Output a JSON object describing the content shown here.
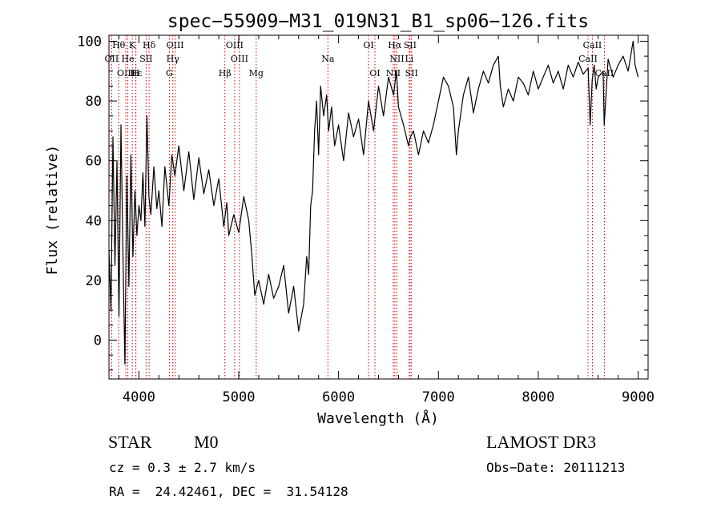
{
  "chart_data": {
    "type": "line",
    "title": "spec−55909−M31_019N31_B1_sp06−126.fits",
    "xlabel": "Wavelength (Å)",
    "ylabel": "Flux (relative)",
    "xlim": [
      3700,
      9100
    ],
    "ylim": [
      -13,
      102
    ],
    "xticks": [
      4000,
      5000,
      6000,
      7000,
      8000,
      9000
    ],
    "yticks": [
      0,
      20,
      40,
      60,
      80,
      100
    ],
    "grid": false,
    "series": [
      {
        "name": "flux",
        "x": [
          3700,
          3720,
          3740,
          3760,
          3780,
          3800,
          3820,
          3840,
          3860,
          3880,
          3900,
          3920,
          3940,
          3960,
          3980,
          4000,
          4020,
          4040,
          4060,
          4080,
          4100,
          4120,
          4150,
          4180,
          4200,
          4230,
          4260,
          4300,
          4330,
          4360,
          4400,
          4450,
          4500,
          4550,
          4600,
          4650,
          4700,
          4750,
          4800,
          4850,
          4880,
          4900,
          4950,
          5000,
          5050,
          5100,
          5130,
          5160,
          5200,
          5250,
          5300,
          5350,
          5400,
          5450,
          5500,
          5550,
          5600,
          5650,
          5680,
          5700,
          5720,
          5740,
          5760,
          5780,
          5800,
          5820,
          5850,
          5880,
          5900,
          5930,
          5960,
          6000,
          6050,
          6100,
          6150,
          6200,
          6250,
          6300,
          6350,
          6400,
          6450,
          6500,
          6550,
          6580,
          6600,
          6650,
          6700,
          6720,
          6750,
          6800,
          6850,
          6900,
          6950,
          7000,
          7050,
          7100,
          7150,
          7180,
          7200,
          7250,
          7300,
          7350,
          7400,
          7450,
          7500,
          7550,
          7600,
          7620,
          7650,
          7700,
          7750,
          7800,
          7850,
          7900,
          7950,
          8000,
          8050,
          8100,
          8150,
          8200,
          8250,
          8300,
          8350,
          8400,
          8450,
          8500,
          8520,
          8540,
          8560,
          8580,
          8600,
          8650,
          8660,
          8700,
          8750,
          8800,
          8850,
          8900,
          8950,
          8970,
          9000
        ],
        "values": [
          30,
          10,
          68,
          25,
          60,
          8,
          72,
          30,
          -8,
          55,
          18,
          62,
          28,
          50,
          35,
          45,
          40,
          56,
          38,
          75,
          48,
          42,
          58,
          44,
          50,
          38,
          58,
          45,
          62,
          55,
          65,
          50,
          63,
          47,
          61,
          49,
          57,
          45,
          54,
          38,
          46,
          35,
          42,
          36,
          48,
          40,
          29,
          15,
          20,
          12,
          22,
          14,
          18,
          25,
          9,
          18,
          3,
          12,
          28,
          22,
          45,
          50,
          70,
          80,
          62,
          85,
          75,
          82,
          70,
          78,
          65,
          72,
          60,
          76,
          68,
          74,
          62,
          80,
          70,
          85,
          75,
          88,
          82,
          90,
          78,
          72,
          65,
          68,
          70,
          62,
          70,
          66,
          72,
          80,
          88,
          85,
          78,
          62,
          70,
          82,
          88,
          76,
          84,
          90,
          86,
          92,
          95,
          85,
          78,
          84,
          80,
          88,
          86,
          82,
          90,
          84,
          88,
          92,
          86,
          90,
          84,
          92,
          88,
          93,
          89,
          91,
          72,
          87,
          92,
          84,
          88,
          90,
          72,
          94,
          88,
          92,
          95,
          90,
          100,
          92,
          88
        ]
      }
    ],
    "lines": [
      {
        "label": "Hθ",
        "x": 3798,
        "row": 0
      },
      {
        "label": "K",
        "x": 3934,
        "row": 0
      },
      {
        "label": "Hδ",
        "x": 4102,
        "row": 0
      },
      {
        "label": "OIII",
        "x": 4363,
        "row": 0
      },
      {
        "label": "OIII",
        "x": 4959,
        "row": 0
      },
      {
        "label": "OI",
        "x": 6300,
        "row": 0
      },
      {
        "label": "Hα",
        "x": 6563,
        "row": 0
      },
      {
        "label": "SII",
        "x": 6716,
        "row": 0
      },
      {
        "label": "CaII",
        "x": 8542,
        "row": 0
      },
      {
        "label": "OII",
        "x": 3727,
        "row": 1
      },
      {
        "label": "He",
        "x": 3889,
        "row": 1
      },
      {
        "label": "SII",
        "x": 4072,
        "row": 1
      },
      {
        "label": "Hγ",
        "x": 4340,
        "row": 1
      },
      {
        "label": "OIII",
        "x": 5007,
        "row": 1
      },
      {
        "label": "Na",
        "x": 5893,
        "row": 1
      },
      {
        "label": "NII",
        "x": 6584,
        "row": 1
      },
      {
        "label": "Li",
        "x": 6708,
        "row": 1
      },
      {
        "label": "CaII",
        "x": 8498,
        "row": 1
      },
      {
        "label": "OIII",
        "x": 3869,
        "row": 2
      },
      {
        "label": "Hε",
        "x": 3970,
        "row": 2
      },
      {
        "label": "H",
        "x": 3968,
        "row": 2
      },
      {
        "label": "G",
        "x": 4305,
        "row": 2
      },
      {
        "label": "Hβ",
        "x": 4861,
        "row": 2
      },
      {
        "label": "Mg",
        "x": 5175,
        "row": 2
      },
      {
        "label": "OI",
        "x": 6364,
        "row": 2
      },
      {
        "label": "NII",
        "x": 6548,
        "row": 2
      },
      {
        "label": "SII",
        "x": 6731,
        "row": 2
      },
      {
        "label": "CaII",
        "x": 8662,
        "row": 2
      }
    ]
  },
  "info": {
    "class": "STAR",
    "subclass": "M0",
    "survey": "LAMOST DR3",
    "cz": "cz = 0.3 ± 2.7 km/s",
    "obsdate": "Obs−Date: 20111213",
    "coords": "RA =  24.42461, DEC =  31.54128"
  },
  "colors": {
    "spectrum": "#000000",
    "line_markers": "#cc0000",
    "axes": "#000000"
  }
}
